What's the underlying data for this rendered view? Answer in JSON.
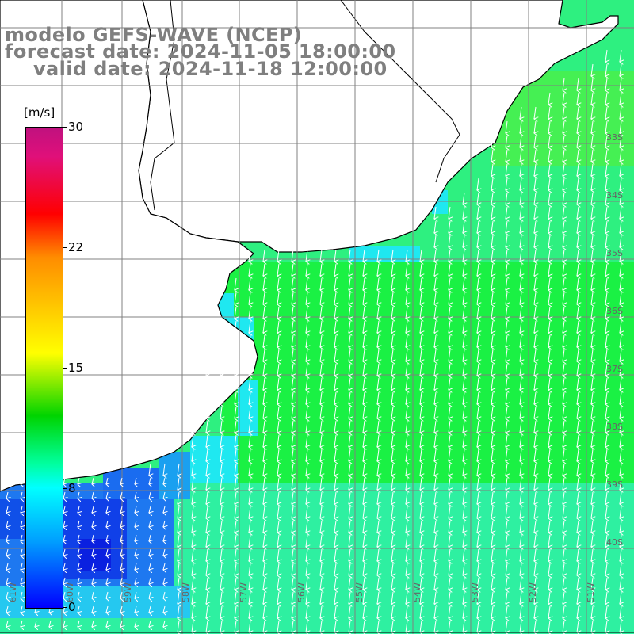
{
  "title": {
    "line1": "modelo GEFS-WAVE (NCEP)",
    "line2": "forecast date: 2024-11-05 18:00:00",
    "line3": "valid date: 2024-11-18 12:00:00"
  },
  "legend": {
    "unit": "[m/s]",
    "ticks": [
      "30",
      "22",
      "15",
      "8",
      "0"
    ]
  },
  "lat_labels": [
    "33S",
    "34S",
    "35S",
    "36S",
    "37S",
    "38S",
    "39S",
    "40S"
  ],
  "lon_labels": [
    "61W",
    "60W",
    "59W",
    "58W",
    "57W",
    "56W",
    "55W",
    "54W",
    "53W",
    "52W",
    "51W"
  ],
  "colors": {
    "land": "#ffffff",
    "coast": "#000000",
    "grid": "#808080",
    "arrows": "#ffffff",
    "title_text": "#7f7f7f"
  },
  "wind_direction": "north-to-south (arrows pointing down, slightly southwest)"
}
